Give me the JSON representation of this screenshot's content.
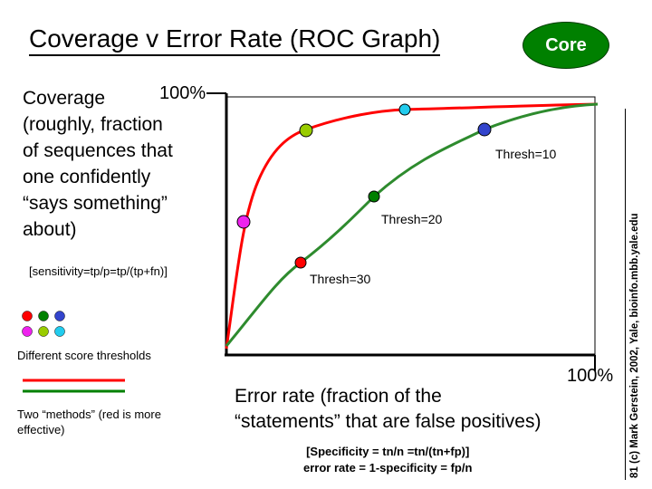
{
  "title": "Coverage v Error Rate (ROC Graph)",
  "badge": "Core",
  "y_axis": {
    "label": "Coverage\n(roughly, fraction\nof sequences that\none confidently\n“says something”\nabout)",
    "max_label": "100%",
    "formula": "[sensitivity=tp/p=tp/(tp+fn)]"
  },
  "x_axis": {
    "label": "Error rate (fraction of the\n“statements” that are false positives)",
    "max_label": "100%",
    "formula": "[Specificity = tn/n =tn/(tn+fp)]\nerror rate = 1-specificity = fp/n"
  },
  "thresholds": {
    "t10": "Thresh=10",
    "t20": "Thresh=20",
    "t30": "Thresh=30"
  },
  "legend": {
    "thresholds_label": "Different score thresholds",
    "methods_label": "Two “methods” (red is more\neffective)",
    "dot_colors": [
      "#ff0000",
      "#008000",
      "#3344cc",
      "#ee22ee",
      "#99cc00",
      "#22ccee"
    ],
    "line_colors": [
      "#ff0000",
      "#008000"
    ]
  },
  "curve_colors": {
    "red": "#ff0000",
    "green": "#2e8b2e"
  },
  "sidebar": "81 (c) Mark Gerstein, 2002, Yale, bioinfo.mbb.yale.edu"
}
